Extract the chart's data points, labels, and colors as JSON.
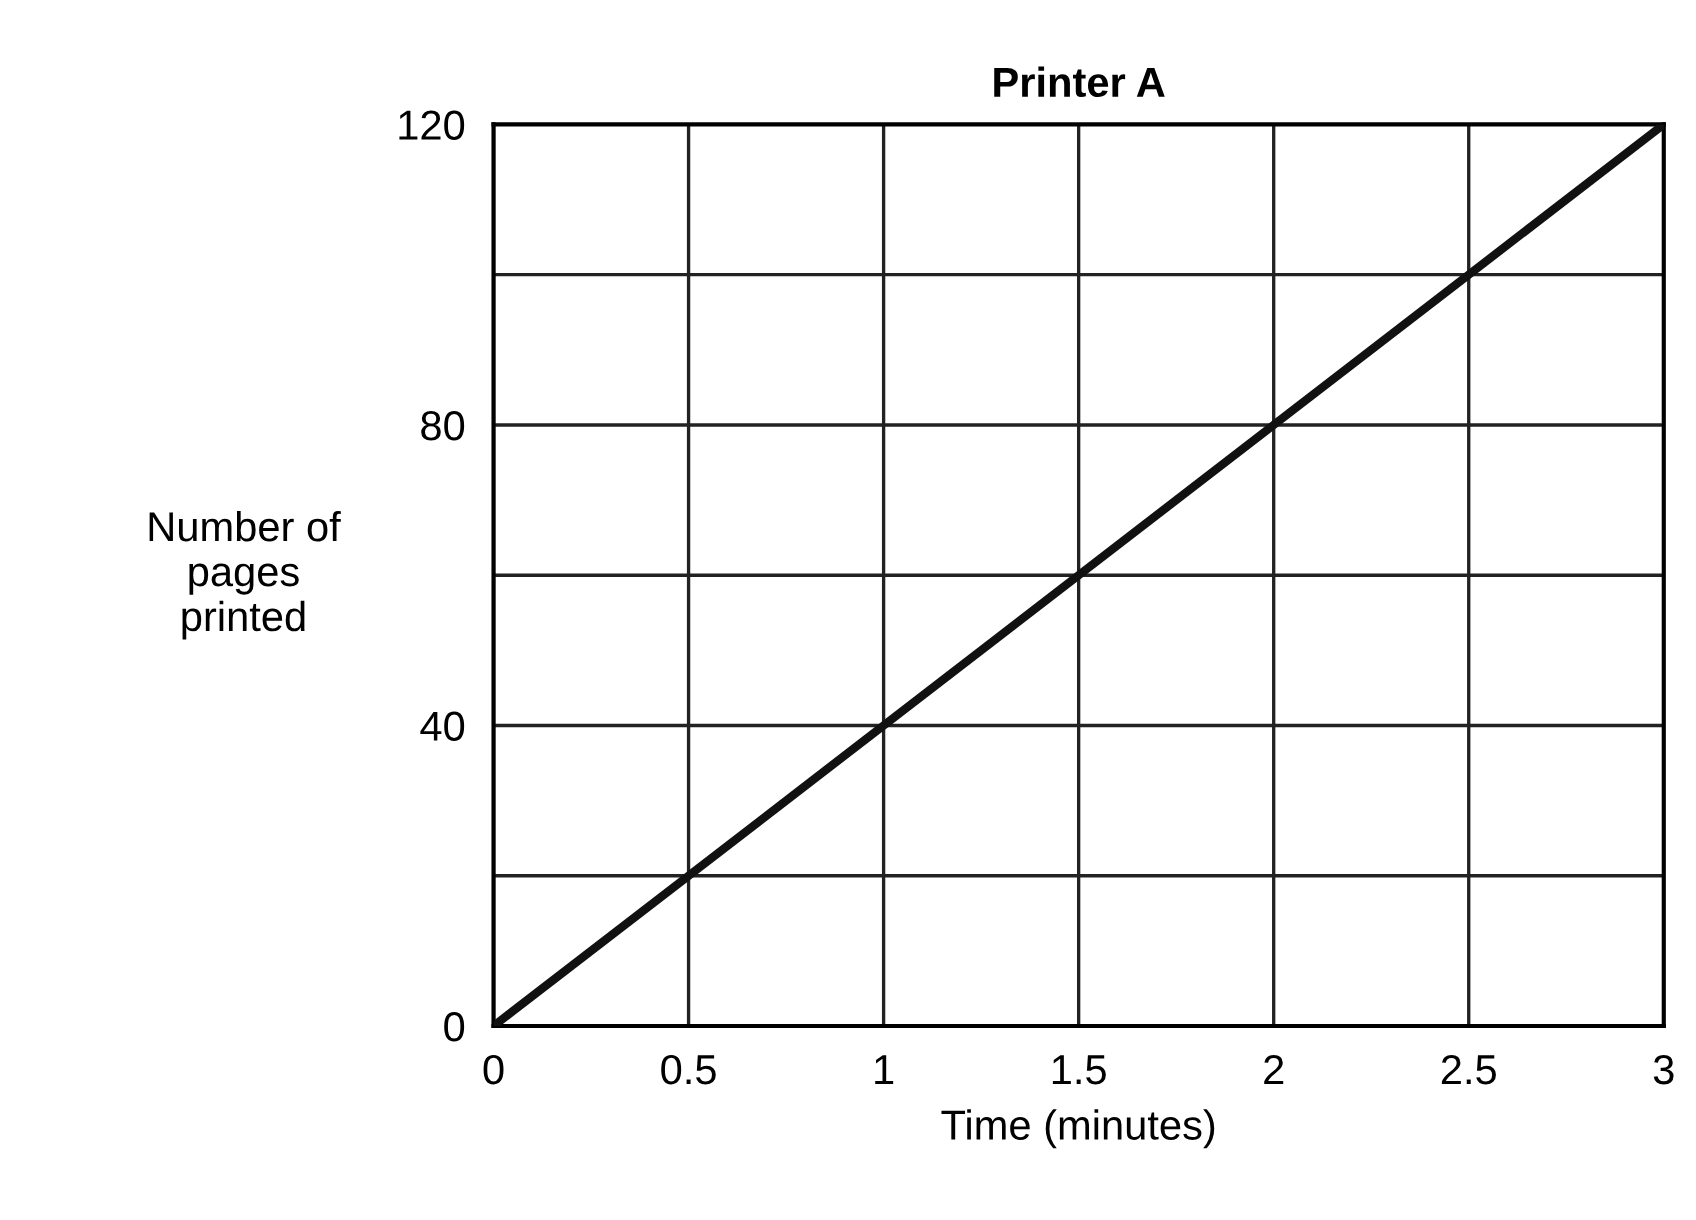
{
  "chart_data": {
    "type": "line",
    "title": "Printer A",
    "xlabel": "Time (minutes)",
    "ylabel": "Number of\npages\nprinted",
    "x": [
      0,
      3
    ],
    "series": [
      {
        "color": "#111111",
        "values": [
          0,
          120
        ]
      }
    ],
    "xlim": [
      0,
      3
    ],
    "ylim": [
      0,
      120
    ],
    "xticks": [
      0,
      0.5,
      1,
      1.5,
      2,
      2.5,
      3
    ],
    "yticks": [
      0,
      {
        "value": 20,
        "label": null
      },
      40,
      {
        "value": 60,
        "label": null
      },
      80,
      {
        "value": 100,
        "label": null
      },
      120
    ],
    "grid": true,
    "marker": "none",
    "line_style": "solid",
    "legend": false
  }
}
